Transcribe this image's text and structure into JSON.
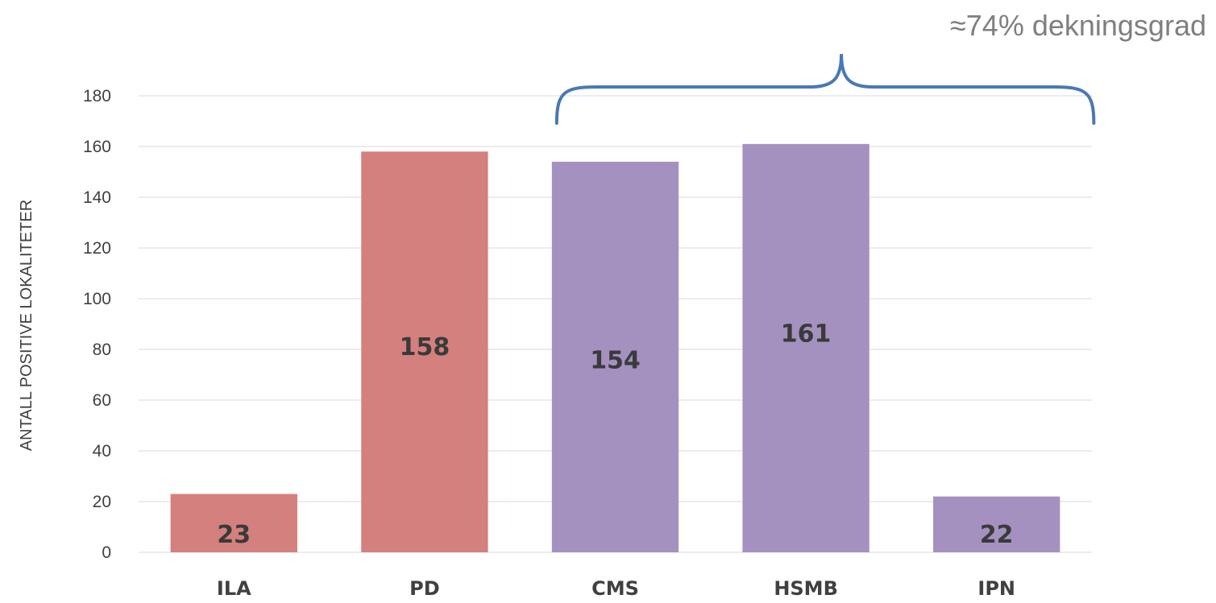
{
  "chart_data": {
    "type": "bar",
    "categories": [
      "ILA",
      "PD",
      "CMS",
      "HSMB",
      "IPN"
    ],
    "values": [
      23,
      158,
      154,
      161,
      22
    ],
    "data_labels": [
      "23",
      "158",
      "154",
      "161",
      "22"
    ],
    "bar_colors": [
      "#d4807e",
      "#d4807e",
      "#a491c0",
      "#a491c0",
      "#a491c0"
    ],
    "xlabel": "",
    "ylabel": "ANTALL POSITIVE LOKALITETER",
    "ylim": [
      0,
      180
    ],
    "yticks": [
      0,
      20,
      40,
      60,
      80,
      100,
      120,
      140,
      160,
      180
    ],
    "grid": true,
    "legend": "none",
    "annotation": {
      "text": "≈74% dekningsgrad",
      "spans_categories": [
        "CMS",
        "HSMB",
        "IPN"
      ],
      "brace_color": "#4a78b5",
      "text_color": "#7f7f7f"
    }
  }
}
